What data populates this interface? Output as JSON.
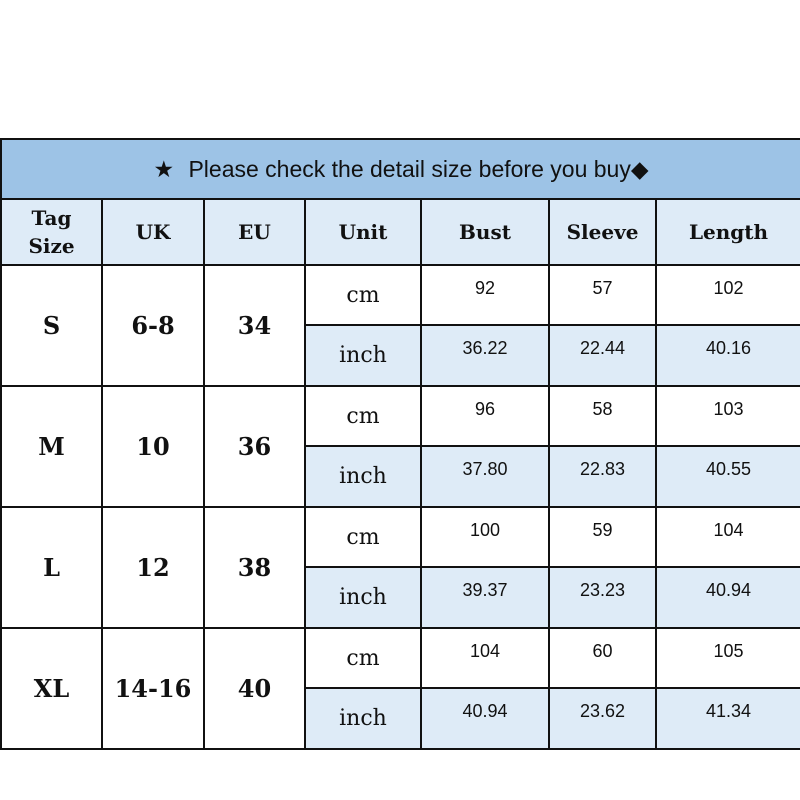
{
  "banner": {
    "prefix_icon": "star-icon",
    "text": "Please check the detail size before you buy",
    "suffix_icon": "diamond-icon",
    "star": "★",
    "diamond": "◆"
  },
  "headers": {
    "tag_size": "Tag\nSize",
    "tag_line1": "Tag",
    "tag_line2": "Size",
    "uk": "UK",
    "eu": "EU",
    "unit": "Unit",
    "bust": "Bust",
    "sleeve": "Sleeve",
    "length": "Length"
  },
  "colors": {
    "banner": "#9dc3e6",
    "light": "#deebf7",
    "border": "#111111"
  },
  "rows": [
    {
      "size": "S",
      "uk": "6-8",
      "eu": "34",
      "cm": {
        "unit": "cm",
        "bust": "92",
        "sleeve": "57",
        "length": "102"
      },
      "inch": {
        "unit": "inch",
        "bust": "36.22",
        "sleeve": "22.44",
        "length": "40.16"
      }
    },
    {
      "size": "M",
      "uk": "10",
      "eu": "36",
      "cm": {
        "unit": "cm",
        "bust": "96",
        "sleeve": "58",
        "length": "103"
      },
      "inch": {
        "unit": "inch",
        "bust": "37.80",
        "sleeve": "22.83",
        "length": "40.55"
      }
    },
    {
      "size": "L",
      "uk": "12",
      "eu": "38",
      "cm": {
        "unit": "cm",
        "bust": "100",
        "sleeve": "59",
        "length": "104"
      },
      "inch": {
        "unit": "inch",
        "bust": "39.37",
        "sleeve": "23.23",
        "length": "40.94"
      }
    },
    {
      "size": "XL",
      "uk": "14-16",
      "eu": "40",
      "cm": {
        "unit": "cm",
        "bust": "104",
        "sleeve": "60",
        "length": "105"
      },
      "inch": {
        "unit": "inch",
        "bust": "40.94",
        "sleeve": "23.62",
        "length": "41.34"
      }
    }
  ]
}
